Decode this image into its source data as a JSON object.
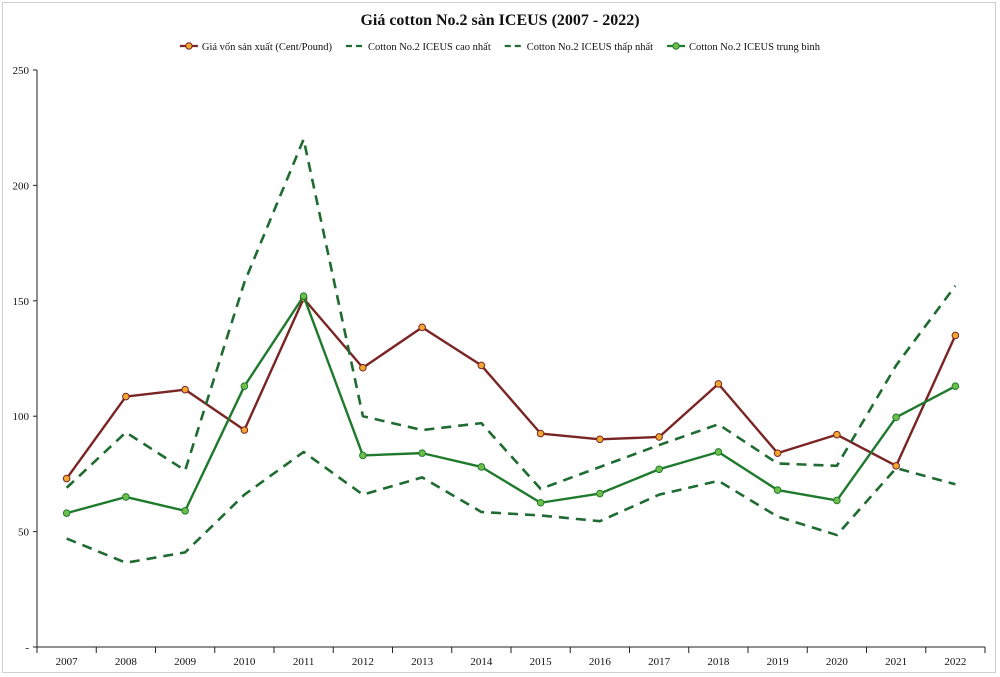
{
  "chart_data": {
    "type": "line",
    "title": "Giá cotton No.2 sàn ICEUS (2007 - 2022)",
    "xlabel": "",
    "ylabel": "",
    "categories": [
      "2007",
      "2008",
      "2009",
      "2010",
      "2011",
      "2012",
      "2013",
      "2014",
      "2015",
      "2016",
      "2017",
      "2018",
      "2019",
      "2020",
      "2021",
      "2022"
    ],
    "y_ticks": [
      0,
      50,
      100,
      150,
      200,
      250
    ],
    "y_tick_labels": [
      "-",
      "50",
      "100",
      "150",
      "200",
      "250"
    ],
    "ylim": [
      0,
      250
    ],
    "grid": false,
    "legend_position": "top-center",
    "series": [
      {
        "name": "Giá vốn sản xuất (Cent/Pound)",
        "color": "#7a2424",
        "marker_color": "#f0a830",
        "style": "solid",
        "markers": true,
        "values": [
          73,
          108.5,
          111.5,
          94,
          151,
          121,
          138.5,
          122,
          92.5,
          90,
          91,
          114,
          84,
          92,
          78.5,
          135
        ]
      },
      {
        "name": "Cotton No.2 ICEUS cao nhất",
        "color": "#1f6b32",
        "style": "dashed",
        "markers": false,
        "values": [
          69,
          93,
          76.5,
          158,
          220,
          100,
          94,
          97,
          68.5,
          78,
          87.5,
          96.5,
          79.5,
          78.5,
          122,
          156.5
        ]
      },
      {
        "name": "Cotton No.2 ICEUS thấp nhất",
        "color": "#1f6b32",
        "style": "dashed",
        "markers": false,
        "values": [
          47,
          36.5,
          41,
          66,
          84.5,
          66,
          73.5,
          58.5,
          57,
          54.5,
          66,
          72,
          56.5,
          48.5,
          77.5,
          70.5
        ]
      },
      {
        "name": "Cotton No.2 ICEUS trung bình",
        "color": "#1f7a2e",
        "marker_color": "#6cc04a",
        "style": "solid",
        "markers": true,
        "values": [
          58,
          65,
          59,
          113,
          152,
          83,
          84,
          78,
          62.5,
          66.5,
          77,
          84.5,
          68,
          63.5,
          99.5,
          113
        ]
      }
    ]
  }
}
